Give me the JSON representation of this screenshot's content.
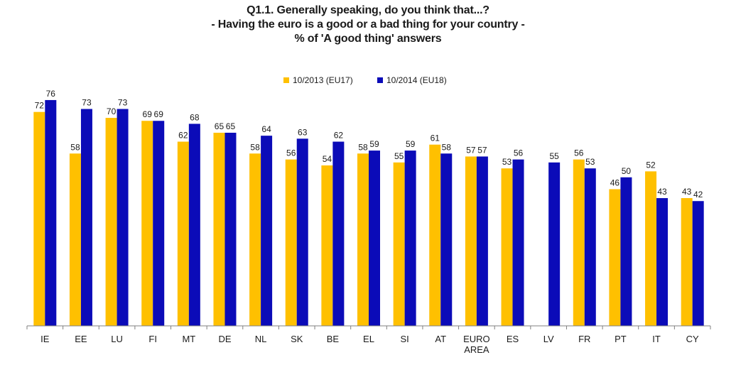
{
  "title": {
    "line1": "Q1.1. Generally speaking, do you think that...?",
    "line2": "- Having the euro is a good or a bad thing for your country -",
    "line3": "% of 'A good thing' answers"
  },
  "colors": {
    "series1": "#FFC000",
    "series2": "#0B0BB8",
    "axis": "#808080",
    "text": "#1a1a1a"
  },
  "chart_data": {
    "type": "bar",
    "title": "Q1.1. Generally speaking, do you think that...? - Having the euro is a good or a bad thing for your country - % of 'A good thing' answers",
    "categories": [
      "IE",
      "EE",
      "LU",
      "FI",
      "MT",
      "DE",
      "NL",
      "SK",
      "BE",
      "EL",
      "SI",
      "AT",
      "EURO\nAREA",
      "ES",
      "LV",
      "FR",
      "PT",
      "IT",
      "CY"
    ],
    "series": [
      {
        "name": "10/2013 (EU17)",
        "values": [
          72,
          58,
          70,
          69,
          62,
          65,
          58,
          56,
          54,
          58,
          55,
          61,
          57,
          53,
          null,
          56,
          46,
          52,
          43
        ]
      },
      {
        "name": "10/2014 (EU18)",
        "values": [
          76,
          73,
          73,
          69,
          68,
          65,
          64,
          63,
          62,
          59,
          59,
          58,
          57,
          56,
          55,
          53,
          50,
          43,
          42
        ]
      }
    ],
    "xlabel": "",
    "ylabel": "",
    "ylim": [
      0,
      84
    ],
    "grid": false,
    "legend_position": "top-center",
    "y_axis_visible": false
  }
}
